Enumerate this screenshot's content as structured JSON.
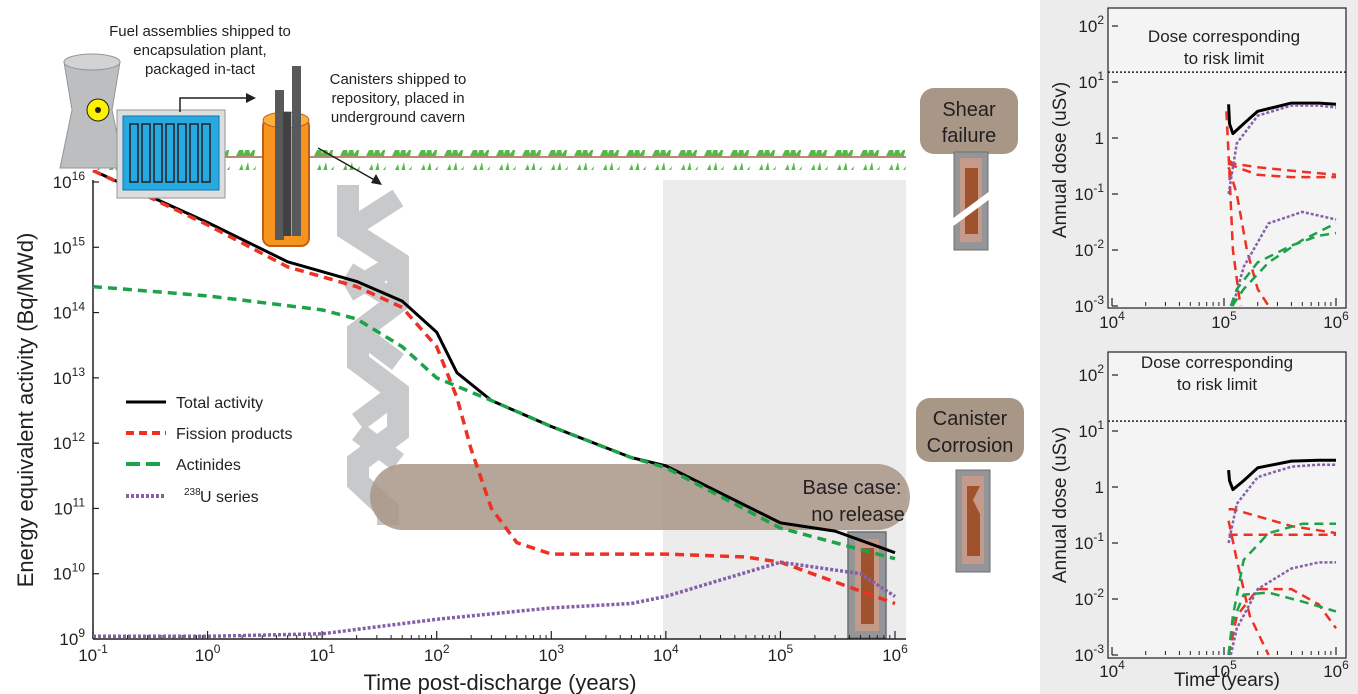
{
  "main": {
    "ylabel": "Energy equivalent activity (Bq/MWd)",
    "xlabel": "Time post-discharge (years)",
    "annotations": {
      "fuel_shipped": [
        "Fuel assemblies shipped to",
        "encapsulation plant,",
        "packaged in-tact"
      ],
      "canisters_shipped": [
        "Canisters shipped to",
        "repository, placed in",
        "underground cavern"
      ],
      "base_case": [
        "Base case:",
        "no release"
      ]
    },
    "legend": {
      "total": "Total activity",
      "fission": "Fission products",
      "actinides": "Actinides",
      "u238_sup": "238",
      "u238_rest": "U series"
    }
  },
  "side_labels": {
    "shear": [
      "Shear",
      "failure"
    ],
    "corrosion": [
      "Canister",
      "Corrosion"
    ]
  },
  "right_panels": {
    "ylabel": "Annual dose (uSv)",
    "xlabel": "Time (years)",
    "risk_label": [
      "Dose corresponding",
      "to risk limit"
    ]
  },
  "colors": {
    "total": "#000000",
    "fission": "#ee3124",
    "actinides": "#1da24a",
    "u238": "#8560a8",
    "shaded": "#ececec",
    "brown": "#a89687"
  },
  "chart_data": [
    {
      "type": "line",
      "scale": "log-log",
      "xlim": [
        0.1,
        1000000
      ],
      "ylim": [
        1000000000,
        10000000000000000
      ],
      "x_ticks": [
        "10-1",
        "100",
        "101",
        "102",
        "103",
        "104",
        "105",
        "106"
      ],
      "y_ticks": [
        "109",
        "1010",
        "1011",
        "1012",
        "1013",
        "1014",
        "1015",
        "1016"
      ],
      "shaded_region_x": [
        10000,
        1300000
      ],
      "series": [
        {
          "name": "Total activity",
          "color": "#000000",
          "style": "solid",
          "x": [
            0.1,
            1,
            5,
            20,
            50,
            100,
            150,
            300,
            1000,
            5000,
            10000,
            100000,
            300000,
            1000000
          ],
          "y": [
            1.5e+16,
            2400000000000000.0,
            600000000000000.0,
            300000000000000.0,
            150000000000000.0,
            50000000000000.0,
            12000000000000.0,
            4500000000000.0,
            1800000000000.0,
            600000000000.0,
            450000000000.0,
            60000000000.0,
            45000000000.0,
            21000000000.0
          ]
        },
        {
          "name": "Fission products",
          "color": "#ee3124",
          "style": "dashed",
          "x": [
            0.1,
            1,
            5,
            20,
            50,
            100,
            150,
            200,
            300,
            500,
            1000,
            10000,
            50000,
            100000,
            1000000
          ],
          "y": [
            1.5e+16,
            2200000000000000.0,
            500000000000000.0,
            250000000000000.0,
            120000000000000.0,
            30000000000000.0,
            5000000000000.0,
            800000000000.0,
            100000000000.0,
            30000000000.0,
            20000000000.0,
            20000000000.0,
            18000000000.0,
            15000000000.0,
            3500000000.0
          ]
        },
        {
          "name": "Actinides",
          "color": "#1da24a",
          "style": "dashed",
          "x": [
            0.1,
            1,
            10,
            20,
            50,
            100,
            300,
            1000,
            5000,
            10000,
            100000,
            1000000
          ],
          "y": [
            250000000000000.0,
            180000000000000.0,
            110000000000000.0,
            80000000000000.0,
            30000000000000.0,
            10000000000000.0,
            4500000000000.0,
            1800000000000.0,
            600000000000.0,
            420000000000.0,
            50000000000.0,
            17000000000.0
          ]
        },
        {
          "name": "238U series",
          "color": "#8560a8",
          "style": "dotted",
          "x": [
            0.1,
            1,
            10,
            100,
            1000,
            5000,
            10000,
            30000,
            100000,
            500000,
            1000000
          ],
          "y": [
            1100000000.0,
            1100000000.0,
            1200000000.0,
            2000000000.0,
            3000000000.0,
            3500000000.0,
            4500000000.0,
            8000000000.0,
            15000000000.0,
            10000000000.0,
            4500000000.0
          ]
        }
      ]
    },
    {
      "type": "line",
      "scale": "log-log",
      "xlim": [
        10000,
        1000000
      ],
      "ylim": [
        0.001,
        100
      ],
      "x_ticks": [
        "104",
        "105",
        "106"
      ],
      "y_ticks": [
        "10-3",
        "10-2",
        "10-1",
        "1",
        "101",
        "102"
      ],
      "risk_limit_dose": 15,
      "series": [
        {
          "color": "#000000",
          "style": "solid",
          "x": [
            110000,
            112000,
            120000,
            150000,
            200000,
            400000,
            700000,
            1000000
          ],
          "y": [
            4,
            1.8,
            1.2,
            1.8,
            3,
            4.2,
            4.2,
            4
          ]
        },
        {
          "color": "#ee3124",
          "style": "dashed",
          "x": [
            110000,
            120000,
            200000,
            500000,
            1000000
          ],
          "y": [
            0.4,
            0.35,
            0.3,
            0.25,
            0.22
          ]
        },
        {
          "color": "#ee3124",
          "style": "dashed",
          "x": [
            110000,
            130000,
            200000,
            400000,
            1000000
          ],
          "y": [
            0.35,
            0.3,
            0.22,
            0.2,
            0.2
          ]
        },
        {
          "color": "#ee3124",
          "style": "dashed",
          "x": [
            110000,
            130000,
            160000,
            200000,
            250000
          ],
          "y": [
            0.3,
            0.1,
            0.01,
            0.002,
            0.001
          ]
        },
        {
          "color": "#ee3124",
          "style": "dashed",
          "x": [
            105000,
            110000,
            120000,
            140000
          ],
          "y": [
            3,
            0.5,
            0.01,
            0.001
          ]
        },
        {
          "color": "#8560a8",
          "style": "dotted",
          "x": [
            110000,
            130000,
            200000,
            400000,
            700000,
            1000000
          ],
          "y": [
            0.1,
            0.8,
            2.5,
            3.8,
            3.8,
            3.5
          ]
        },
        {
          "color": "#8560a8",
          "style": "dotted",
          "x": [
            120000,
            150000,
            250000,
            500000,
            1000000
          ],
          "y": [
            0.001,
            0.005,
            0.03,
            0.048,
            0.035
          ]
        },
        {
          "color": "#1da24a",
          "style": "dashed",
          "x": [
            115000,
            130000,
            200000,
            400000,
            700000,
            1000000
          ],
          "y": [
            0.001,
            0.002,
            0.006,
            0.012,
            0.018,
            0.02
          ]
        },
        {
          "color": "#1da24a",
          "style": "dashed",
          "x": [
            118000,
            150000,
            250000,
            500000,
            1000000
          ],
          "y": [
            0.001,
            0.002,
            0.006,
            0.015,
            0.03
          ]
        }
      ]
    },
    {
      "type": "line",
      "scale": "log-log",
      "xlim": [
        10000,
        1000000
      ],
      "ylim": [
        0.001,
        100
      ],
      "x_ticks": [
        "104",
        "105",
        "106"
      ],
      "y_ticks": [
        "10-3",
        "10-2",
        "10-1",
        "1",
        "101",
        "102"
      ],
      "risk_limit_dose": 15,
      "series": [
        {
          "color": "#000000",
          "style": "solid",
          "x": [
            110000,
            112000,
            120000,
            150000,
            200000,
            400000,
            700000,
            1000000
          ],
          "y": [
            2,
            1.3,
            0.9,
            1.3,
            2.2,
            2.9,
            3,
            3
          ]
        },
        {
          "color": "#ee3124",
          "style": "dashed",
          "x": [
            110000,
            120000,
            200000,
            400000,
            1000000
          ],
          "y": [
            0.4,
            0.4,
            0.3,
            0.2,
            0.15
          ]
        },
        {
          "color": "#ee3124",
          "style": "dashed",
          "x": [
            110000,
            200000,
            500000,
            1000000
          ],
          "y": [
            0.14,
            0.14,
            0.14,
            0.14
          ]
        },
        {
          "color": "#ee3124",
          "style": "dashed",
          "x": [
            110000,
            130000,
            200000,
            400000,
            700000,
            1000000
          ],
          "y": [
            0.001,
            0.005,
            0.015,
            0.015,
            0.008,
            0.003
          ]
        },
        {
          "color": "#ee3124",
          "style": "dashed",
          "x": [
            110000,
            130000,
            170000,
            250000
          ],
          "y": [
            0.25,
            0.05,
            0.005,
            0.001
          ]
        },
        {
          "color": "#8560a8",
          "style": "dotted",
          "x": [
            110000,
            130000,
            200000,
            400000,
            700000,
            1000000
          ],
          "y": [
            0.1,
            0.5,
            1.5,
            2.3,
            2.5,
            2.5
          ]
        },
        {
          "color": "#8560a8",
          "style": "dotted",
          "x": [
            115000,
            130000,
            200000,
            400000,
            700000,
            1000000
          ],
          "y": [
            0.001,
            0.003,
            0.015,
            0.035,
            0.045,
            0.045
          ]
        },
        {
          "color": "#1da24a",
          "style": "dashed",
          "x": [
            110000,
            120000,
            150000,
            250000,
            500000,
            1000000
          ],
          "y": [
            0.001,
            0.005,
            0.05,
            0.15,
            0.22,
            0.22
          ]
        },
        {
          "color": "#1da24a",
          "style": "dashed",
          "x": [
            110000,
            120000,
            150000,
            250000,
            500000,
            1000000
          ],
          "y": [
            0.001,
            0.004,
            0.012,
            0.013,
            0.009,
            0.006
          ]
        }
      ]
    }
  ]
}
